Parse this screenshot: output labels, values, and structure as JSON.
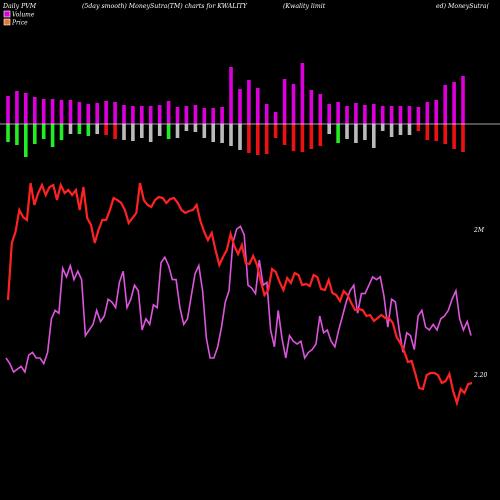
{
  "header": {
    "left": "Daily PVM",
    "center_left": "(5day smooth) MoneySutra(TM) charts for KWALITY",
    "center_right": "(Kwality limit",
    "right": "ed) MoneySutra("
  },
  "colors": {
    "background": "#000000",
    "volume_up": "#cc22cc",
    "volume_up_fill": "#dd00dd",
    "volume_down_green": "#22ee22",
    "volume_down_red": "#ee1111",
    "volume_neutral": "#bbbbbb",
    "price_line": "#ff2222",
    "volume_line": "#dd55dd",
    "baseline": "#dddddd"
  },
  "chart_data": {
    "type": "line",
    "legend": [
      {
        "name": "Volume",
        "color": "#dd00dd"
      },
      {
        "name": "Price",
        "color": "#e8762c"
      }
    ],
    "volume_axis_label": "2M",
    "price_axis_label": "2.20",
    "bars": {
      "up": [
        28,
        33,
        31,
        27,
        25,
        25,
        24,
        24,
        22,
        20,
        21,
        23,
        22,
        19,
        18,
        18,
        18,
        19,
        23,
        17,
        18,
        19,
        16,
        16,
        17,
        57,
        35,
        44,
        36,
        20,
        12,
        45,
        40,
        61,
        34,
        30,
        20,
        22,
        18,
        21,
        19,
        20,
        18,
        18,
        18,
        18,
        17,
        22,
        24,
        39,
        42,
        48
      ],
      "down": [
        18,
        21,
        33,
        20,
        15,
        23,
        16,
        10,
        10,
        12,
        10,
        11,
        15,
        16,
        17,
        14,
        18,
        12,
        15,
        14,
        7,
        8,
        14,
        18,
        19,
        22,
        26,
        29,
        31,
        30,
        14,
        21,
        27,
        28,
        25,
        22,
        10,
        19,
        15,
        19,
        16,
        24,
        7,
        13,
        11,
        11,
        7,
        16,
        17,
        20,
        25,
        28
      ],
      "down_color": [
        "g",
        "g",
        "g",
        "g",
        "g",
        "g",
        "g",
        "w",
        "g",
        "g",
        "w",
        "r",
        "r",
        "w",
        "w",
        "w",
        "w",
        "w",
        "g",
        "w",
        "w",
        "w",
        "w",
        "w",
        "w",
        "w",
        "w",
        "r",
        "r",
        "r",
        "r",
        "r",
        "r",
        "r",
        "r",
        "r",
        "w",
        "g",
        "w",
        "w",
        "w",
        "w",
        "w",
        "w",
        "w",
        "w",
        "r",
        "r",
        "r",
        "r",
        "r",
        "r"
      ]
    },
    "price": [
      300,
      243,
      232,
      210,
      217,
      220,
      183,
      205,
      193,
      185,
      195,
      187,
      185,
      200,
      185,
      193,
      190,
      195,
      190,
      210,
      187,
      218,
      225,
      243,
      230,
      220,
      220,
      210,
      198,
      200,
      203,
      210,
      223,
      218,
      213,
      183,
      200,
      205,
      207,
      200,
      197,
      198,
      203,
      199,
      198,
      203,
      210,
      213,
      211,
      210,
      205,
      221,
      232,
      240,
      233,
      250,
      265,
      257,
      250,
      234,
      246,
      254,
      245,
      263,
      264,
      256,
      265,
      281,
      295,
      290,
      269,
      272,
      282,
      290,
      278,
      283,
      273,
      275,
      285,
      284,
      286,
      275,
      277,
      289,
      290,
      280,
      293,
      295,
      301,
      291,
      295,
      303,
      310,
      309,
      310,
      316,
      315,
      321,
      318,
      315,
      318,
      318,
      323,
      337,
      343,
      351,
      362,
      361,
      374,
      388,
      389,
      375,
      373,
      373,
      375,
      383,
      381,
      374,
      391,
      403,
      389,
      393,
      384,
      383
    ],
    "volume": [
      2.0,
      1.8,
      1.5,
      1.6,
      1.7,
      1.5,
      2.1,
      2.2,
      2.0,
      2.0,
      1.8,
      2.2,
      3.4,
      3.7,
      3.6,
      5.2,
      4.9,
      5.3,
      4.8,
      5.1,
      4.8,
      2.8,
      3.0,
      3.2,
      3.7,
      3.3,
      3.5,
      4.1,
      4.0,
      3.8,
      4.7,
      5.1,
      3.8,
      4.1,
      4.6,
      4.4,
      3.0,
      3.4,
      3.2,
      3.9,
      3.8,
      5.4,
      5.6,
      5.3,
      4.8,
      4.8,
      3.8,
      3.2,
      3.4,
      4.2,
      5.0,
      5.3,
      4.4,
      2.7,
      2.0,
      2.0,
      2.4,
      3.1,
      4.0,
      4.4,
      6.1,
      6.6,
      6.7,
      6.4,
      4.6,
      4.5,
      4.3,
      5.5,
      4.6,
      4.7,
      3.0,
      2.4,
      3.7,
      2.7,
      2.0,
      2.8,
      2.6,
      2.5,
      2.6,
      2.0,
      2.2,
      2.3,
      2.5,
      3.5,
      2.9,
      3.0,
      2.6,
      2.4,
      3.0,
      3.5,
      4.0,
      4.4,
      4.6,
      3.6,
      4.3,
      4.3,
      4.6,
      4.9,
      4.8,
      4.9,
      4.2,
      3.1,
      4.1,
      4.0,
      3.0,
      2.2,
      2.9,
      2.8,
      2.3,
      3.5,
      3.7,
      3.1,
      3.0,
      3.2,
      3.0,
      3.4,
      3.5,
      3.7,
      4.1,
      4.4,
      3.4,
      3.0,
      3.3,
      2.8
    ]
  }
}
